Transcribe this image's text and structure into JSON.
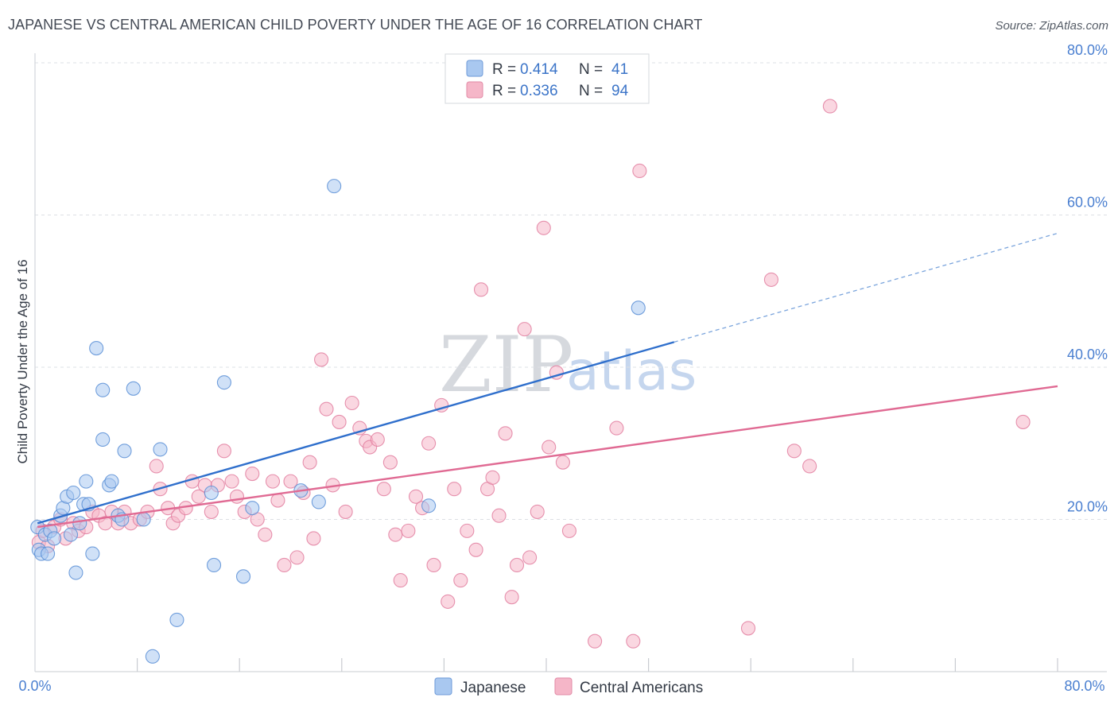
{
  "header": {
    "title": "JAPANESE VS CENTRAL AMERICAN CHILD POVERTY UNDER THE AGE OF 16 CORRELATION CHART",
    "source": "Source: ZipAtlas.com"
  },
  "watermark": {
    "zip": "ZIP",
    "atlas": "atlas"
  },
  "legend": {
    "rows": [
      {
        "r_label": "R =",
        "r_value": "0.414",
        "n_label": "N =",
        "n_value": "41",
        "color": "#a9c8f0"
      },
      {
        "r_label": "R =",
        "r_value": "0.336",
        "n_label": "N =",
        "n_value": "94",
        "color": "#f5b6c8"
      }
    ]
  },
  "bottom_legend": {
    "items": [
      {
        "label": "Japanese",
        "color": "#a9c8f0"
      },
      {
        "label": "Central Americans",
        "color": "#f5b6c8"
      }
    ]
  },
  "chart_data": {
    "type": "scatter",
    "title": "JAPANESE VS CENTRAL AMERICAN CHILD POVERTY UNDER THE AGE OF 16 CORRELATION CHART",
    "xlabel": "",
    "ylabel": "Child Poverty Under the Age of 16",
    "xlim": [
      0,
      80
    ],
    "ylim": [
      0,
      80
    ],
    "x_ticks": [
      "0.0%",
      "80.0%"
    ],
    "y_ticks": [
      {
        "value": 20,
        "label": "20.0%"
      },
      {
        "value": 40,
        "label": "40.0%"
      },
      {
        "value": 60,
        "label": "60.0%"
      },
      {
        "value": 80,
        "label": "80.0%"
      }
    ],
    "grid": true,
    "series": [
      {
        "name": "Japanese",
        "color": "#5b8fd6",
        "fill": "#a9c8f0",
        "trend": {
          "x_start": 0.2,
          "y_start": 19.5,
          "x_solid_end": 50.0,
          "y_solid_end": 43.3,
          "x_dash_end": 80.0,
          "y_dash_end": 57.6,
          "color": "#2f6fcc"
        },
        "points": [
          [
            0.2,
            19.0
          ],
          [
            0.3,
            16.0
          ],
          [
            0.5,
            15.5
          ],
          [
            0.8,
            18.0
          ],
          [
            1.0,
            15.5
          ],
          [
            1.2,
            18.5
          ],
          [
            1.5,
            17.5
          ],
          [
            2.0,
            20.5
          ],
          [
            2.2,
            21.5
          ],
          [
            2.5,
            23.0
          ],
          [
            2.8,
            18.0
          ],
          [
            3.0,
            23.5
          ],
          [
            3.2,
            13.0
          ],
          [
            3.5,
            19.5
          ],
          [
            3.8,
            22.0
          ],
          [
            4.0,
            25.0
          ],
          [
            4.2,
            22.0
          ],
          [
            4.5,
            15.5
          ],
          [
            4.8,
            42.5
          ],
          [
            5.3,
            37.0
          ],
          [
            5.3,
            30.5
          ],
          [
            5.8,
            24.5
          ],
          [
            6.0,
            25.0
          ],
          [
            6.5,
            20.5
          ],
          [
            6.8,
            20.0
          ],
          [
            7.0,
            29.0
          ],
          [
            7.7,
            37.2
          ],
          [
            8.5,
            20.0
          ],
          [
            9.2,
            2.0
          ],
          [
            9.8,
            29.2
          ],
          [
            11.1,
            6.8
          ],
          [
            13.8,
            23.5
          ],
          [
            14.0,
            14.0
          ],
          [
            14.8,
            38.0
          ],
          [
            16.3,
            12.5
          ],
          [
            17.0,
            21.5
          ],
          [
            20.8,
            23.8
          ],
          [
            22.2,
            22.3
          ],
          [
            23.4,
            63.8
          ],
          [
            30.8,
            21.8
          ],
          [
            47.2,
            47.8
          ]
        ]
      },
      {
        "name": "Central Americans",
        "color": "#e27fa0",
        "fill": "#f5b6c8",
        "trend": {
          "x_start": 0.2,
          "y_start": 19.0,
          "x_end": 80.0,
          "y_end": 37.5,
          "color": "#e06a93"
        },
        "points": [
          [
            0.3,
            17.0
          ],
          [
            0.6,
            18.5
          ],
          [
            1.0,
            16.5
          ],
          [
            1.5,
            19.0
          ],
          [
            2.0,
            20.0
          ],
          [
            2.4,
            17.5
          ],
          [
            3.0,
            19.5
          ],
          [
            3.4,
            18.5
          ],
          [
            4.0,
            19.0
          ],
          [
            4.5,
            21.0
          ],
          [
            5.0,
            20.5
          ],
          [
            5.5,
            19.5
          ],
          [
            6.0,
            21.0
          ],
          [
            6.5,
            19.5
          ],
          [
            7.0,
            21.0
          ],
          [
            7.5,
            19.5
          ],
          [
            8.2,
            20.0
          ],
          [
            8.8,
            21.0
          ],
          [
            9.5,
            27.0
          ],
          [
            9.8,
            24.0
          ],
          [
            10.4,
            21.5
          ],
          [
            10.8,
            19.5
          ],
          [
            11.2,
            20.5
          ],
          [
            11.8,
            21.5
          ],
          [
            12.3,
            25.0
          ],
          [
            12.8,
            23.0
          ],
          [
            13.3,
            24.5
          ],
          [
            13.8,
            21.0
          ],
          [
            14.3,
            24.5
          ],
          [
            14.8,
            29.0
          ],
          [
            15.4,
            25.0
          ],
          [
            15.8,
            23.0
          ],
          [
            16.4,
            21.0
          ],
          [
            17.0,
            26.0
          ],
          [
            17.4,
            20.0
          ],
          [
            18.0,
            18.0
          ],
          [
            18.6,
            25.0
          ],
          [
            19.0,
            22.5
          ],
          [
            19.5,
            14.0
          ],
          [
            20.0,
            25.0
          ],
          [
            20.5,
            15.0
          ],
          [
            21.0,
            23.5
          ],
          [
            21.5,
            27.5
          ],
          [
            21.8,
            17.5
          ],
          [
            22.4,
            41.0
          ],
          [
            22.8,
            34.5
          ],
          [
            23.3,
            24.5
          ],
          [
            23.8,
            32.8
          ],
          [
            24.3,
            21.0
          ],
          [
            24.8,
            35.3
          ],
          [
            25.4,
            32.0
          ],
          [
            25.9,
            30.3
          ],
          [
            26.2,
            29.5
          ],
          [
            26.8,
            30.5
          ],
          [
            27.3,
            24.0
          ],
          [
            27.8,
            27.5
          ],
          [
            28.2,
            18.0
          ],
          [
            28.6,
            12.0
          ],
          [
            29.2,
            18.5
          ],
          [
            29.8,
            23.0
          ],
          [
            30.3,
            21.5
          ],
          [
            30.8,
            30.0
          ],
          [
            31.2,
            14.0
          ],
          [
            31.8,
            35.0
          ],
          [
            32.3,
            9.2
          ],
          [
            32.8,
            24.0
          ],
          [
            33.3,
            12.0
          ],
          [
            33.8,
            18.5
          ],
          [
            34.5,
            16.0
          ],
          [
            34.9,
            50.2
          ],
          [
            35.4,
            24.0
          ],
          [
            35.8,
            25.5
          ],
          [
            36.3,
            20.5
          ],
          [
            36.8,
            31.3
          ],
          [
            37.3,
            9.8
          ],
          [
            37.7,
            14.0
          ],
          [
            38.3,
            45.0
          ],
          [
            38.7,
            15.0
          ],
          [
            39.3,
            21.0
          ],
          [
            39.8,
            58.3
          ],
          [
            40.2,
            29.5
          ],
          [
            40.8,
            39.3
          ],
          [
            41.3,
            27.5
          ],
          [
            41.8,
            18.5
          ],
          [
            43.8,
            4.0
          ],
          [
            45.5,
            32.0
          ],
          [
            46.8,
            4.0
          ],
          [
            47.3,
            65.8
          ],
          [
            55.8,
            5.7
          ],
          [
            57.6,
            51.5
          ],
          [
            59.4,
            29.0
          ],
          [
            60.6,
            27.0
          ],
          [
            62.2,
            74.3
          ],
          [
            77.3,
            32.8
          ]
        ]
      }
    ]
  }
}
